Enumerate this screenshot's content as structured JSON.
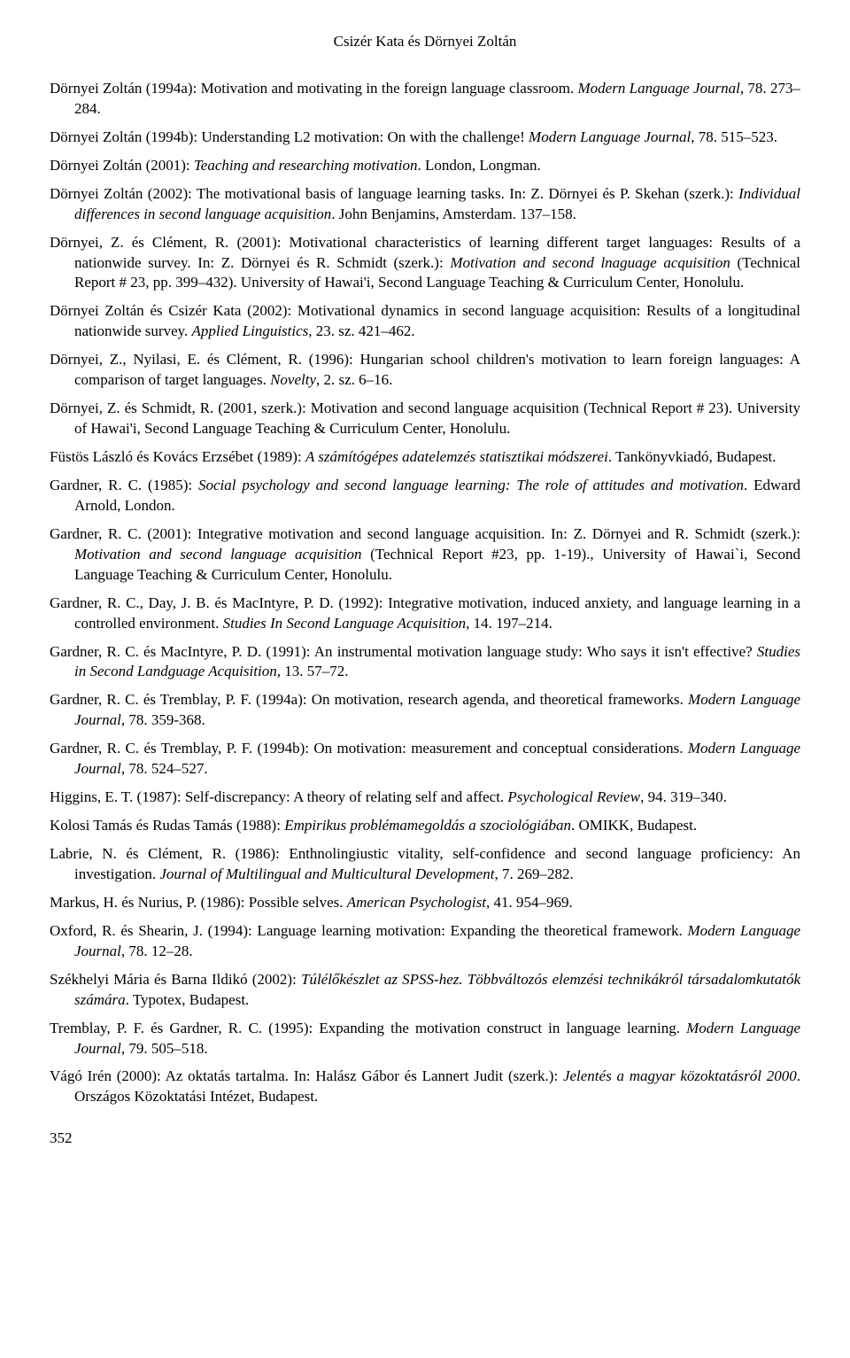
{
  "header": "Csizér Kata és Dörnyei Zoltán",
  "refs": {
    "r1": {
      "a": "Dörnyei Zoltán (1994a): Motivation and motivating in the foreign language classroom. ",
      "b": "Modern Language Journal",
      "c": ", 78. 273–284."
    },
    "r2": {
      "a": "Dörnyei Zoltán (1994b): Understanding L2 motivation: On with the challenge! ",
      "b": "Modern Language Journal",
      "c": ", 78. 515–523."
    },
    "r3": {
      "a": "Dörnyei Zoltán (2001): ",
      "b": "Teaching and researching motivation",
      "c": ". London, Longman."
    },
    "r4": {
      "a": "Dörnyei Zoltán (2002): The motivational basis of language learning tasks. In: Z. Dörnyei és P. Skehan (szerk.): ",
      "b": "Individual differences in second language acquisition",
      "c": ". John Benjamins, Amsterdam. 137–158."
    },
    "r5": {
      "a": "Dörnyei, Z. és Clément, R. (2001): Motivational characteristics of learning different target languages: Results of a nationwide survey. In: Z. Dörnyei és R. Schmidt (szerk.): ",
      "b": "Motivation and second lnaguage acquisition",
      "c": " (Technical Report # 23, pp. 399–432). University of Hawai'i, Second Language Teaching & Curriculum Center, Honolulu."
    },
    "r6": {
      "a": "Dörnyei Zoltán és Csizér Kata (2002): Motivational dynamics in second language acquisition: Results of a longitudinal nationwide survey. ",
      "b": "Applied Linguistics",
      "c": ", 23. sz. 421–462."
    },
    "r7": {
      "a": "Dörnyei, Z., Nyilasi, E. és Clément, R. (1996): Hungarian school children's motivation to learn foreign languages: A comparison of target languages. ",
      "b": "Novelty",
      "c": ", 2. sz. 6–16."
    },
    "r8": {
      "a": "Dörnyei, Z. és Schmidt, R. (2001, szerk.): Motivation and second language acquisition (Technical Report # 23). University of Hawai'i, Second Language Teaching & Curriculum Center, Honolulu."
    },
    "r9": {
      "a": "Füstös László és Kovács Erzsébet (1989): ",
      "b": "A számítógépes adatelemzés statisztikai módszerei",
      "c": ". Tankönyvkiadó, Budapest."
    },
    "r10": {
      "a": "Gardner, R. C. (1985): ",
      "b": "Social psychology and second language learning: The role of attitudes and motivation",
      "c": ". Edward Arnold, London."
    },
    "r11": {
      "a": "Gardner, R. C. (2001): Integrative motivation and second language acquisition. In: Z. Dörnyei and R. Schmidt (szerk.): ",
      "b": "Motivation and second language acquisition",
      "c": " (Technical Report #23, pp. 1-19)., University of Hawai`i, Second Language Teaching & Curriculum Center, Honolulu."
    },
    "r12": {
      "a": "Gardner, R. C., Day, J. B. és MacIntyre, P. D. (1992): Integrative motivation, induced anxiety, and language learning in a controlled environment. ",
      "b": "Studies In Second Language Acquisition",
      "c": ", 14. 197–214."
    },
    "r13": {
      "a": "Gardner, R. C. és MacIntyre, P. D. (1991): An instrumental motivation language study: Who says it isn't effective? ",
      "b": "Studies in Second Landguage Acquisition",
      "c": ", 13. 57–72."
    },
    "r14": {
      "a": "Gardner, R. C. és Tremblay, P. F. (1994a): On motivation, research agenda, and theoretical frameworks. ",
      "b": "Modern Language Journal",
      "c": ", 78. 359-368."
    },
    "r15": {
      "a": "Gardner, R. C. és Tremblay, P. F. (1994b): On motivation: measurement and conceptual considerations. ",
      "b": "Modern Language Journal",
      "c": ", 78. 524–527."
    },
    "r16": {
      "a": "Higgins, E. T. (1987): Self-discrepancy: A theory of relating self and affect. ",
      "b": "Psychological Review",
      "c": ", 94. 319–340."
    },
    "r17": {
      "a": "Kolosi Tamás és Rudas Tamás (1988): ",
      "b": "Empirikus problémamegoldás a szociológiában",
      "c": ". OMIKK, Budapest."
    },
    "r18": {
      "a": "Labrie, N. és Clément, R. (1986): Enthnolingiustic vitality, self-confidence and second language proficiency: An investigation. ",
      "b": "Journal of Multilingual and Multicultural Development",
      "c": ", 7. 269–282."
    },
    "r19": {
      "a": "Markus, H. és Nurius, P. (1986): Possible selves. ",
      "b": "American Psychologist",
      "c": ", 41. 954–969."
    },
    "r20": {
      "a": "Oxford, R. és Shearin, J. (1994): Language learning motivation: Expanding the theoretical framework. ",
      "b": "Modern Language Journal",
      "c": ", 78. 12–28."
    },
    "r21": {
      "a": "Székhelyi Mária és Barna Ildikó (2002): ",
      "b": "Túlélőkészlet az SPSS-hez. Többváltozós elemzési technikákról társadalomkutatók számára",
      "c": ". Typotex, Budapest."
    },
    "r22": {
      "a": "Tremblay, P. F. és Gardner, R. C. (1995): Expanding the motivation construct in language learning. ",
      "b": "Modern Language Journal",
      "c": ", 79. 505–518."
    },
    "r23": {
      "a": "Vágó Irén (2000): Az oktatás tartalma. In: Halász Gábor és Lannert Judit (szerk.): ",
      "b": "Jelentés a magyar közoktatásról 2000",
      "c": ". Országos Közoktatási Intézet, Budapest."
    }
  },
  "pagenum": "352"
}
